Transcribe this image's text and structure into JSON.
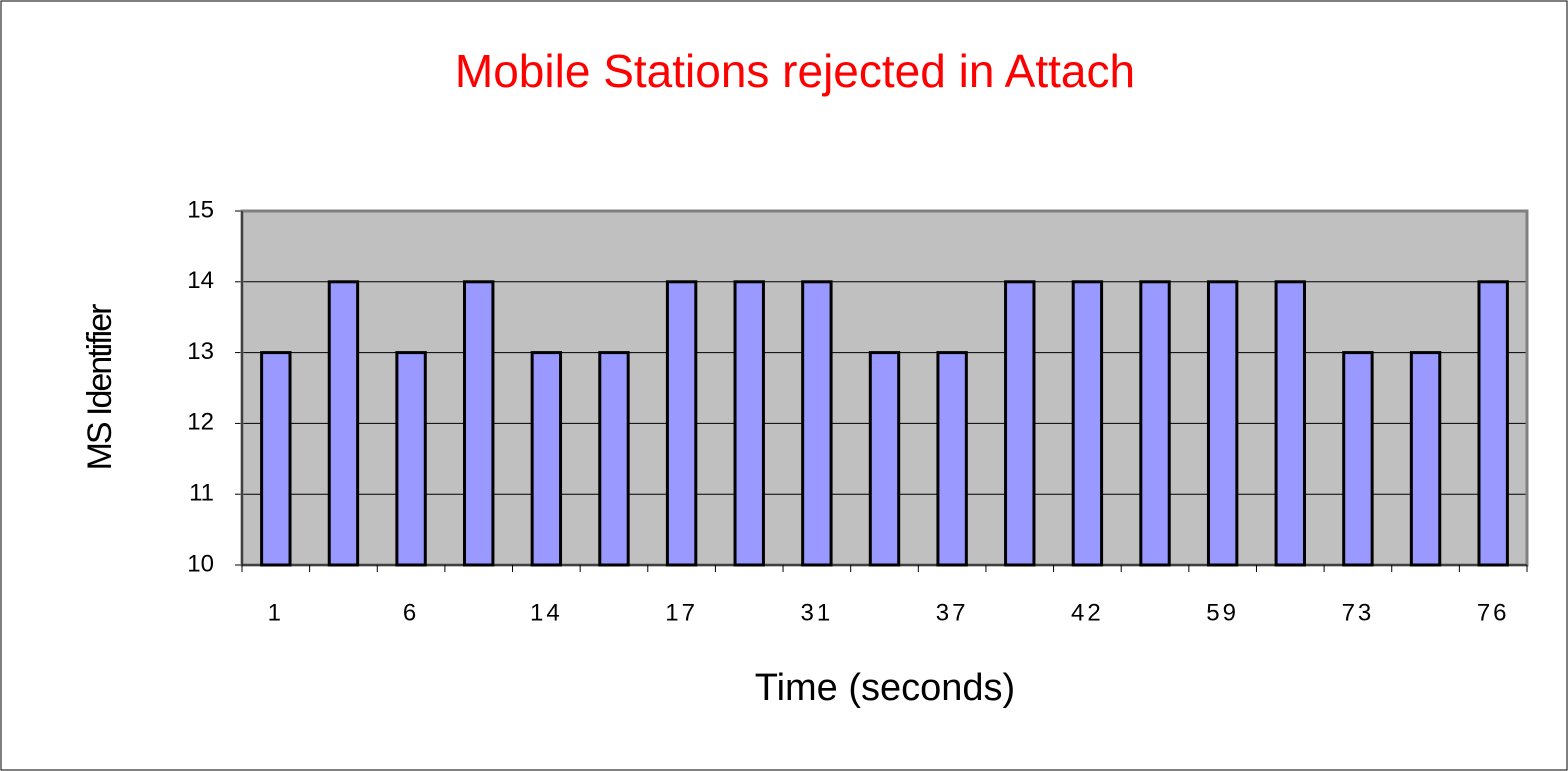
{
  "chart_data": {
    "type": "bar",
    "title": "Mobile Stations rejected in Attach",
    "x_label": "Time (seconds)",
    "y_label": "MS Identifier",
    "categories": [
      1,
      null,
      6,
      null,
      14,
      null,
      17,
      null,
      31,
      null,
      37,
      null,
      42,
      null,
      59,
      null,
      73,
      null,
      76
    ],
    "values": [
      13,
      14,
      13,
      14,
      13,
      13,
      14,
      14,
      14,
      13,
      13,
      14,
      14,
      14,
      14,
      14,
      13,
      13,
      14
    ],
    "color": "#9999ff",
    "ylim": [
      10,
      15
    ],
    "yticks": [
      10,
      11,
      12,
      13,
      14,
      15
    ],
    "grid": true
  }
}
